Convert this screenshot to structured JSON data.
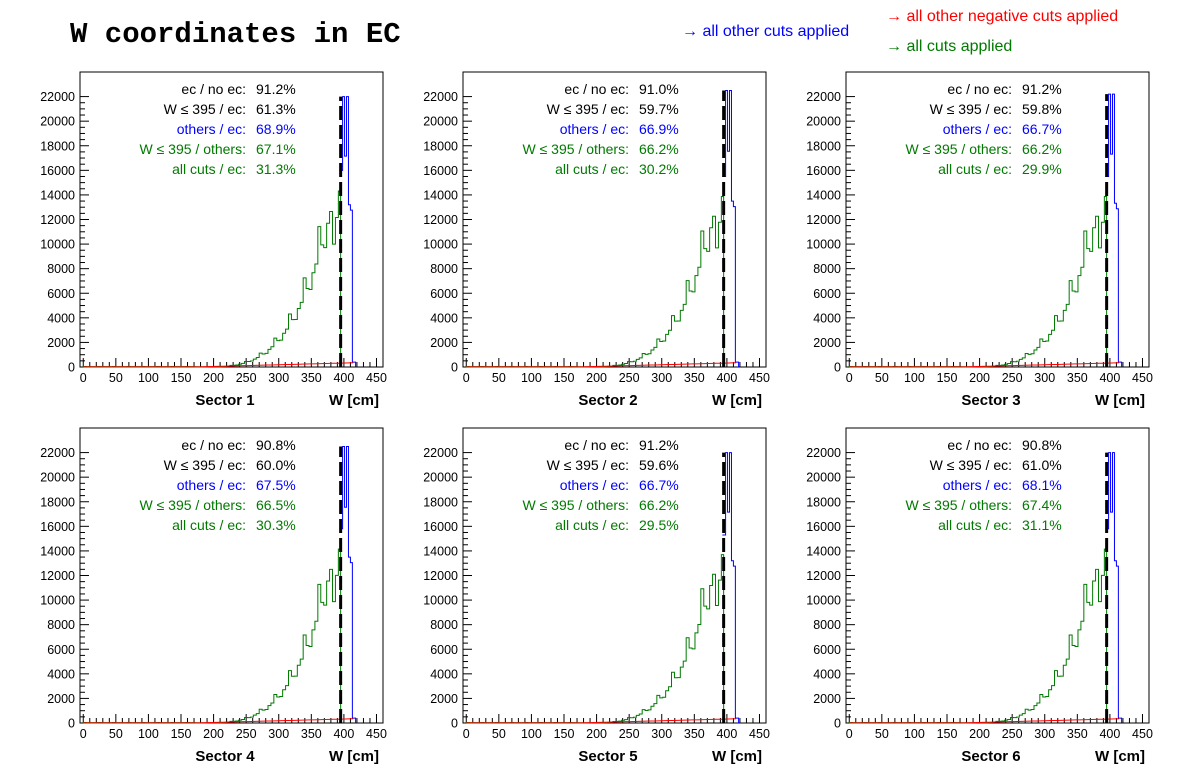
{
  "title": "W coordinates in EC",
  "legend": {
    "blue": "→ all other cuts applied",
    "red": "→ all other negative cuts applied",
    "green": "→ all cuts applied"
  },
  "colors": {
    "blue": "#0000ff",
    "red": "#ff0000",
    "green": "#007a00",
    "black": "#000000"
  },
  "chart_data": [
    {
      "type": "line",
      "xlabel": "W [cm]",
      "sector_label": "Sector 1",
      "xlim": [
        -5,
        460
      ],
      "ylim": [
        0,
        24000
      ],
      "xticks": [
        "0",
        "50",
        "100",
        "150",
        "200",
        "250",
        "300",
        "350",
        "400",
        "450"
      ],
      "yticks": [
        "0",
        "2000",
        "4000",
        "6000",
        "8000",
        "10000",
        "12000",
        "14000",
        "16000",
        "18000",
        "20000",
        "22000"
      ],
      "stats": [
        {
          "label": "ec / no ec:",
          "value": "91.2%",
          "color": "black"
        },
        {
          "label": "W ≤ 395 / ec:",
          "value": "61.3%",
          "color": "black"
        },
        {
          "label": "others / ec:",
          "value": "68.9%",
          "color": "blue"
        },
        {
          "label": "W ≤ 395 / others:",
          "value": "67.1%",
          "color": "green"
        },
        {
          "label": "all cuts / ec:",
          "value": "31.3%",
          "color": "green"
        }
      ],
      "cut_line_x": 395,
      "peak": 22000,
      "peak_green": 16000
    },
    {
      "type": "line",
      "xlabel": "W [cm]",
      "sector_label": "Sector 2",
      "xlim": [
        -5,
        460
      ],
      "ylim": [
        0,
        24000
      ],
      "xticks": [
        "0",
        "50",
        "100",
        "150",
        "200",
        "250",
        "300",
        "350",
        "400",
        "450"
      ],
      "yticks": [
        "0",
        "2000",
        "4000",
        "6000",
        "8000",
        "10000",
        "12000",
        "14000",
        "16000",
        "18000",
        "20000",
        "22000"
      ],
      "stats": [
        {
          "label": "ec / no ec:",
          "value": "91.0%",
          "color": "black"
        },
        {
          "label": "W ≤ 395 / ec:",
          "value": "59.7%",
          "color": "black"
        },
        {
          "label": "others / ec:",
          "value": "66.9%",
          "color": "blue"
        },
        {
          "label": "W ≤ 395 / others:",
          "value": "66.2%",
          "color": "green"
        },
        {
          "label": "all cuts / ec:",
          "value": "30.2%",
          "color": "green"
        }
      ],
      "cut_line_x": 395,
      "peak": 22500,
      "peak_green": 15500
    },
    {
      "type": "line",
      "xlabel": "W [cm]",
      "sector_label": "Sector 3",
      "xlim": [
        -5,
        460
      ],
      "ylim": [
        0,
        24000
      ],
      "xticks": [
        "0",
        "50",
        "100",
        "150",
        "200",
        "250",
        "300",
        "350",
        "400",
        "450"
      ],
      "yticks": [
        "0",
        "2000",
        "4000",
        "6000",
        "8000",
        "10000",
        "12000",
        "14000",
        "16000",
        "18000",
        "20000",
        "22000"
      ],
      "stats": [
        {
          "label": "ec / no ec:",
          "value": "91.2%",
          "color": "black"
        },
        {
          "label": "W ≤ 395 / ec:",
          "value": "59.8%",
          "color": "black"
        },
        {
          "label": "others / ec:",
          "value": "66.7%",
          "color": "blue"
        },
        {
          "label": "W ≤ 395 / others:",
          "value": "66.2%",
          "color": "green"
        },
        {
          "label": "all cuts / ec:",
          "value": "29.9%",
          "color": "green"
        }
      ],
      "cut_line_x": 395,
      "peak": 22200,
      "peak_green": 15500
    },
    {
      "type": "line",
      "xlabel": "W [cm]",
      "sector_label": "Sector 4",
      "xlim": [
        -5,
        460
      ],
      "ylim": [
        0,
        24000
      ],
      "xticks": [
        "0",
        "50",
        "100",
        "150",
        "200",
        "250",
        "300",
        "350",
        "400",
        "450"
      ],
      "yticks": [
        "0",
        "2000",
        "4000",
        "6000",
        "8000",
        "10000",
        "12000",
        "14000",
        "16000",
        "18000",
        "20000",
        "22000"
      ],
      "stats": [
        {
          "label": "ec / no ec:",
          "value": "90.8%",
          "color": "black"
        },
        {
          "label": "W ≤ 395 / ec:",
          "value": "60.0%",
          "color": "black"
        },
        {
          "label": "others / ec:",
          "value": "67.5%",
          "color": "blue"
        },
        {
          "label": "W ≤ 395 / others:",
          "value": "66.5%",
          "color": "green"
        },
        {
          "label": "all cuts / ec:",
          "value": "30.3%",
          "color": "green"
        }
      ],
      "cut_line_x": 395,
      "peak": 22500,
      "peak_green": 15800
    },
    {
      "type": "line",
      "xlabel": "W [cm]",
      "sector_label": "Sector 5",
      "xlim": [
        -5,
        460
      ],
      "ylim": [
        0,
        24000
      ],
      "xticks": [
        "0",
        "50",
        "100",
        "150",
        "200",
        "250",
        "300",
        "350",
        "400",
        "450"
      ],
      "yticks": [
        "0",
        "2000",
        "4000",
        "6000",
        "8000",
        "10000",
        "12000",
        "14000",
        "16000",
        "18000",
        "20000",
        "22000"
      ],
      "stats": [
        {
          "label": "ec / no ec:",
          "value": "91.2%",
          "color": "black"
        },
        {
          "label": "W ≤ 395 / ec:",
          "value": "59.6%",
          "color": "black"
        },
        {
          "label": "others / ec:",
          "value": "66.7%",
          "color": "blue"
        },
        {
          "label": "W ≤ 395 / others:",
          "value": "66.2%",
          "color": "green"
        },
        {
          "label": "all cuts / ec:",
          "value": "29.5%",
          "color": "green"
        }
      ],
      "cut_line_x": 395,
      "peak": 22000,
      "peak_green": 15300
    },
    {
      "type": "line",
      "xlabel": "W [cm]",
      "sector_label": "Sector 6",
      "xlim": [
        -5,
        460
      ],
      "ylim": [
        0,
        24000
      ],
      "xticks": [
        "0",
        "50",
        "100",
        "150",
        "200",
        "250",
        "300",
        "350",
        "400",
        "450"
      ],
      "yticks": [
        "0",
        "2000",
        "4000",
        "6000",
        "8000",
        "10000",
        "12000",
        "14000",
        "16000",
        "18000",
        "20000",
        "22000"
      ],
      "stats": [
        {
          "label": "ec / no ec:",
          "value": "90.8%",
          "color": "black"
        },
        {
          "label": "W ≤ 395 / ec:",
          "value": "61.0%",
          "color": "black"
        },
        {
          "label": "others / ec:",
          "value": "68.1%",
          "color": "blue"
        },
        {
          "label": "W ≤ 395 / others:",
          "value": "67.4%",
          "color": "green"
        },
        {
          "label": "all cuts / ec:",
          "value": "31.1%",
          "color": "green"
        }
      ],
      "cut_line_x": 395,
      "peak": 22000,
      "peak_green": 15800
    }
  ]
}
